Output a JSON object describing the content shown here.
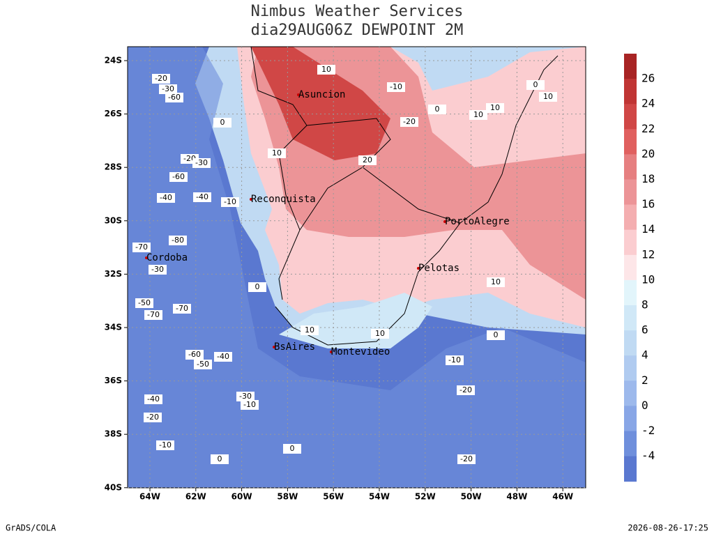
{
  "header": {
    "title": "Nimbus Weather Services",
    "subtitle": "dia29AUG06Z DEWPOINT 2M"
  },
  "map": {
    "lat_labels": [
      "24S",
      "26S",
      "28S",
      "30S",
      "32S",
      "34S",
      "36S",
      "38S",
      "40S"
    ],
    "lon_labels": [
      "64W",
      "62W",
      "60W",
      "58W",
      "56W",
      "54W",
      "52W",
      "50W",
      "48W",
      "46W"
    ],
    "cities": [
      "Asuncion",
      "Reconquista",
      "PortoAlegre",
      "Cordoba",
      "Pelotas",
      "BsAires",
      "Montevideo"
    ],
    "contour_labels": [
      10,
      -10,
      0,
      10,
      0,
      10,
      10,
      -20,
      -20,
      -30,
      -60,
      0,
      10,
      20,
      -20,
      -30,
      -60,
      -40,
      -40,
      -10,
      -80,
      -70,
      -30,
      0,
      10,
      -50,
      -70,
      -70,
      10,
      10,
      0,
      -60,
      -50,
      -40,
      -10,
      -20,
      -40,
      -30,
      -10,
      -20,
      -10,
      0,
      0,
      -20
    ]
  },
  "colorbar": {
    "labels": [
      26,
      24,
      22,
      20,
      18,
      16,
      14,
      12,
      10,
      8,
      6,
      4,
      2,
      0,
      -2,
      -4
    ],
    "colors": [
      "#a82424",
      "#c03534",
      "#d04746",
      "#e0605f",
      "#e67f80",
      "#ec9497",
      "#f4aeb0",
      "#fbcdd0",
      "#fde6e8",
      "#e2f5fb",
      "#d0e8f7",
      "#c0daf3",
      "#b0cbf0",
      "#9db9ec",
      "#88a6e6",
      "#6f8fdc",
      "#5a78d0"
    ]
  },
  "footer": {
    "left": "GrADS/COLA",
    "right": "2026-08-26-17:25"
  }
}
